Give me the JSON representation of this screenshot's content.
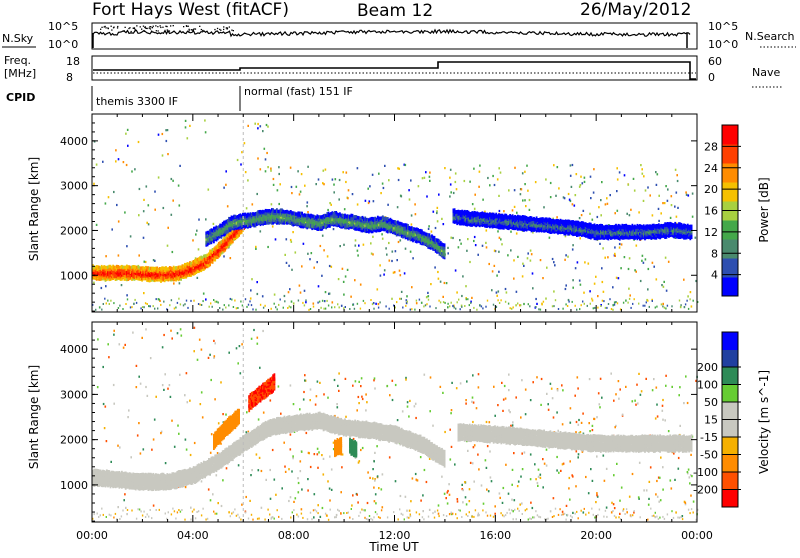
{
  "header": {
    "station": "Fort Hays West (fitACF)",
    "beam": "Beam 12",
    "date": "26/May/2012"
  },
  "summary_panels": {
    "nsky_label": "N.Sky",
    "nsky_ticks": [
      "10^5",
      "10^0"
    ],
    "nsearch_label": "N.Search",
    "nsearch_ticks": [
      "10^5",
      "10^0"
    ],
    "freq_label": "Freq.",
    "freq_unit": "[MHz]",
    "freq_ticks": [
      "18",
      "8"
    ],
    "nave_label": "Nave",
    "nave_ticks": [
      "60",
      "0"
    ],
    "cpid_label": "CPID",
    "cpid_segments": [
      {
        "label": "themis 3300 IF",
        "start_hour": 0,
        "end_hour": 6
      },
      {
        "label": "normal (fast) 151 IF",
        "start_hour": 6,
        "end_hour": 24
      }
    ]
  },
  "colors": {
    "power_scale": [
      "#0000ff",
      "#2e4fb0",
      "#4a8a6e",
      "#44a84a",
      "#a8d040",
      "#f5c000",
      "#ff8c00",
      "#ff4000",
      "#ff0000"
    ],
    "velocity_scale": [
      "#ff0000",
      "#ff5000",
      "#ff8c00",
      "#f5b000",
      "#c8c8c0",
      "#c8c8c0",
      "#66cc33",
      "#2e8b57",
      "#2040a0",
      "#0000ff"
    ]
  },
  "chart_data": [
    {
      "type": "heatmap",
      "name": "power",
      "xlabel": "",
      "ylabel": "Slant Range [km]",
      "xlim": [
        0,
        24
      ],
      "ylim": [
        180,
        4600
      ],
      "yticks": [
        1000,
        2000,
        3000,
        4000
      ],
      "colorbar": {
        "label": "Power [dB]",
        "ticks": [
          4,
          8,
          12,
          16,
          20,
          24,
          28
        ],
        "range": [
          0,
          32
        ]
      },
      "bands": [
        {
          "hours": [
            0,
            0.5,
            1,
            1.5,
            2,
            2.5,
            3,
            3.5,
            4,
            4.5,
            5,
            5.5,
            6
          ],
          "range_km": [
            1100,
            1080,
            1100,
            1090,
            1080,
            1050,
            1060,
            1100,
            1200,
            1350,
            1600,
            1900,
            2200
          ],
          "power_db": 28
        },
        {
          "hours": [
            4.5,
            5,
            5.5,
            6,
            6.5,
            7,
            7.5,
            8,
            8.5,
            9,
            9.5,
            10,
            10.5,
            11,
            11.5,
            12,
            12.5,
            13,
            13.5,
            14
          ],
          "range_km": [
            1850,
            2000,
            2200,
            2250,
            2300,
            2350,
            2350,
            2300,
            2250,
            2200,
            2300,
            2250,
            2200,
            2150,
            2200,
            2100,
            2000,
            1900,
            1750,
            1550
          ],
          "power_db": 10
        },
        {
          "hours": [
            14.3,
            15,
            16,
            17,
            18,
            19,
            20,
            21,
            22,
            23,
            23.8
          ],
          "range_km": [
            2350,
            2300,
            2250,
            2200,
            2150,
            2100,
            2000,
            2000,
            2000,
            2050,
            2000
          ],
          "power_db": 6
        }
      ]
    },
    {
      "type": "heatmap",
      "name": "velocity",
      "xlabel": "Time UT",
      "ylabel": "Slant Range [km]",
      "xlim": [
        0,
        24
      ],
      "ylim": [
        180,
        4600
      ],
      "xticks": [
        "00:00",
        "04:00",
        "08:00",
        "12:00",
        "16:00",
        "20:00",
        "00:00"
      ],
      "yticks": [
        1000,
        2000,
        3000,
        4000
      ],
      "colorbar": {
        "label": "Velocity [m s^-1]",
        "ticks": [
          200,
          100,
          50,
          15,
          -15,
          -50,
          -100,
          -200
        ],
        "range": [
          -250,
          250
        ]
      },
      "bands": [
        {
          "hours": [
            0,
            1,
            2,
            3,
            4,
            5,
            6,
            7,
            8,
            9,
            10,
            11,
            12,
            13,
            14
          ],
          "range_km": [
            1200,
            1150,
            1100,
            1100,
            1250,
            1550,
            1950,
            2300,
            2400,
            2450,
            2300,
            2250,
            2150,
            1950,
            1600
          ],
          "velocity": 0
        },
        {
          "hours": [
            4.8,
            5.3,
            5.8
          ],
          "range_km": [
            2000,
            2300,
            2550
          ],
          "velocity": -60
        },
        {
          "hours": [
            6.2,
            7.2
          ],
          "range_km": [
            2850,
            3300
          ],
          "velocity": -200
        },
        {
          "hours": [
            9.6,
            9.9
          ],
          "range_km": [
            1850,
            1900
          ],
          "velocity": -60
        },
        {
          "hours": [
            10.2,
            10.5
          ],
          "range_km": [
            1900,
            1800
          ],
          "velocity": 150
        },
        {
          "hours": [
            14.5,
            16,
            18,
            20,
            22,
            23.8
          ],
          "range_km": [
            2200,
            2150,
            2050,
            1950,
            1950,
            1950
          ],
          "velocity": 0
        }
      ]
    }
  ]
}
